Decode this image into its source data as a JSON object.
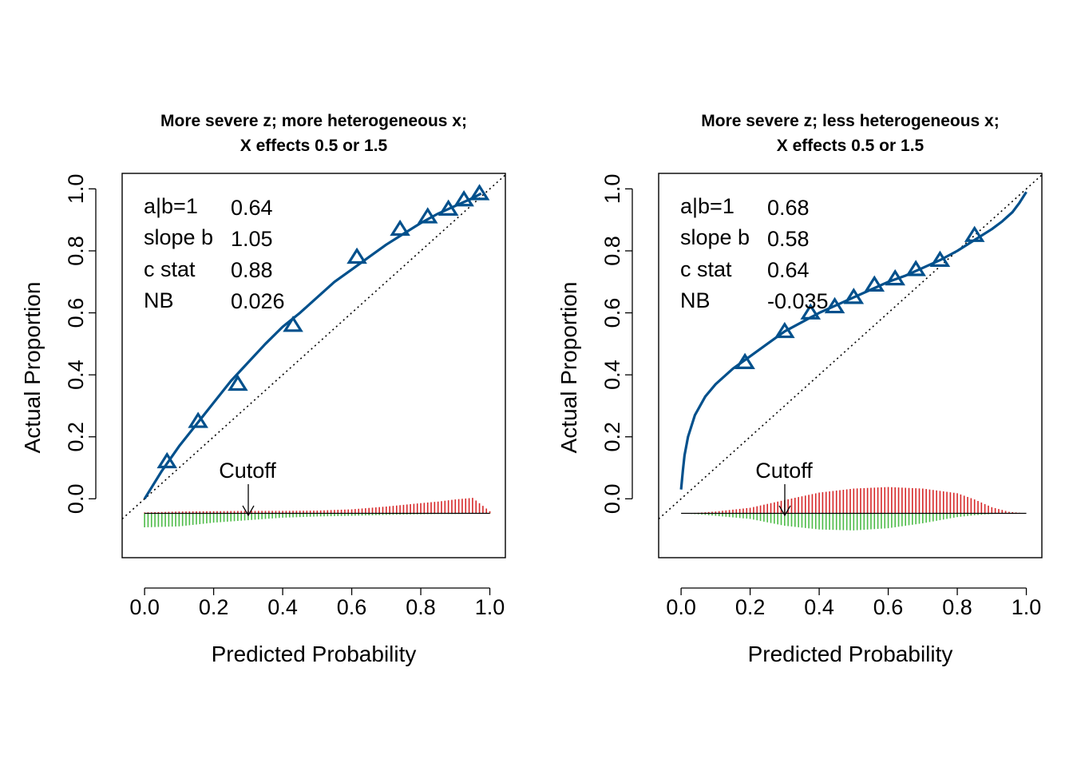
{
  "colors": {
    "curve": "#00508C",
    "event_bars": "#D62728",
    "nonevent_bars": "#4CBB47",
    "diagonal": "#000000",
    "frame": "#000000"
  },
  "chart_data": [
    {
      "type": "line",
      "title_line1": "More severe z; more heterogeneous x;",
      "title_line2": "X effects 0.5 or 1.5",
      "xlabel": "Predicted Probability",
      "ylabel": "Actual Proportion",
      "xlim": [
        -0.065,
        1.045
      ],
      "ylim": [
        -0.19,
        1.05
      ],
      "x_ticks": [
        "0.0",
        "0.2",
        "0.4",
        "0.6",
        "0.8",
        "1.0"
      ],
      "y_ticks": [
        "0.0",
        "0.2",
        "0.4",
        "0.6",
        "0.8",
        "1.0"
      ],
      "stats": {
        "labels": [
          "a|b=1",
          "slope b",
          "c stat",
          "NB"
        ],
        "values": [
          "0.64",
          "1.05",
          "0.88",
          "0.026"
        ]
      },
      "cutoff": {
        "label": "Cutoff",
        "x": 0.3
      },
      "curve": {
        "x": [
          0.0,
          0.05,
          0.1,
          0.15,
          0.2,
          0.25,
          0.3,
          0.35,
          0.4,
          0.45,
          0.5,
          0.55,
          0.6,
          0.65,
          0.7,
          0.75,
          0.8,
          0.85,
          0.9,
          0.95,
          0.975
        ],
        "y": [
          0.0,
          0.09,
          0.17,
          0.24,
          0.31,
          0.38,
          0.44,
          0.5,
          0.555,
          0.6,
          0.65,
          0.7,
          0.74,
          0.78,
          0.82,
          0.855,
          0.89,
          0.92,
          0.945,
          0.97,
          0.985
        ]
      },
      "points": {
        "x": [
          0.065,
          0.155,
          0.27,
          0.43,
          0.615,
          0.74,
          0.82,
          0.88,
          0.925,
          0.97
        ],
        "y": [
          0.12,
          0.25,
          0.37,
          0.56,
          0.78,
          0.87,
          0.91,
          0.935,
          0.965,
          0.985
        ]
      },
      "histogram": {
        "baseline": -0.047,
        "bins": [
          0.0,
          0.1,
          0.2,
          0.3,
          0.4,
          0.5,
          0.6,
          0.7,
          0.8,
          0.85,
          0.9,
          0.95,
          1.0
        ],
        "event_height": [
          0.003,
          0.006,
          0.007,
          0.008,
          0.008,
          0.009,
          0.013,
          0.022,
          0.033,
          0.038,
          0.045,
          0.05,
          0.007
        ],
        "nonevent_depth": [
          0.045,
          0.042,
          0.03,
          0.022,
          0.014,
          0.01,
          0.008,
          0.005,
          0.003,
          0.002,
          0.002,
          0.001,
          0.001
        ]
      }
    },
    {
      "type": "line",
      "title_line1": "More severe z; less heterogeneous x;",
      "title_line2": "X effects 0.5 or 1.5",
      "xlabel": "Predicted Probability",
      "ylabel": "Actual Proportion",
      "xlim": [
        -0.065,
        1.045
      ],
      "ylim": [
        -0.19,
        1.05
      ],
      "x_ticks": [
        "0.0",
        "0.2",
        "0.4",
        "0.6",
        "0.8",
        "1.0"
      ],
      "y_ticks": [
        "0.0",
        "0.2",
        "0.4",
        "0.6",
        "0.8",
        "1.0"
      ],
      "stats": {
        "labels": [
          "a|b=1",
          "slope b",
          "c stat",
          "NB"
        ],
        "values": [
          "0.68",
          "0.58",
          "0.64",
          "-0.035"
        ]
      },
      "cutoff": {
        "label": "Cutoff",
        "x": 0.3
      },
      "curve": {
        "x": [
          0.0,
          0.005,
          0.01,
          0.02,
          0.04,
          0.07,
          0.1,
          0.15,
          0.2,
          0.25,
          0.3,
          0.35,
          0.4,
          0.45,
          0.5,
          0.55,
          0.6,
          0.65,
          0.7,
          0.75,
          0.8,
          0.85,
          0.9,
          0.93,
          0.96,
          0.98,
          1.0
        ],
        "y": [
          0.03,
          0.09,
          0.14,
          0.2,
          0.27,
          0.33,
          0.37,
          0.42,
          0.46,
          0.5,
          0.54,
          0.57,
          0.6,
          0.625,
          0.65,
          0.675,
          0.7,
          0.72,
          0.745,
          0.77,
          0.8,
          0.835,
          0.87,
          0.895,
          0.925,
          0.955,
          0.99
        ]
      },
      "points": {
        "x": [
          0.185,
          0.3,
          0.375,
          0.445,
          0.5,
          0.56,
          0.62,
          0.68,
          0.75,
          0.85
        ],
        "y": [
          0.44,
          0.54,
          0.6,
          0.62,
          0.65,
          0.69,
          0.71,
          0.74,
          0.77,
          0.85
        ]
      },
      "histogram": {
        "baseline": -0.047,
        "bins": [
          0.0,
          0.05,
          0.1,
          0.2,
          0.3,
          0.4,
          0.5,
          0.6,
          0.7,
          0.8,
          0.85,
          0.9,
          0.95,
          1.0
        ],
        "event_height": [
          0.0,
          0.002,
          0.006,
          0.018,
          0.043,
          0.067,
          0.08,
          0.085,
          0.08,
          0.065,
          0.045,
          0.02,
          0.005,
          0.0
        ],
        "nonevent_depth": [
          0.0,
          0.003,
          0.008,
          0.018,
          0.04,
          0.052,
          0.055,
          0.048,
          0.032,
          0.012,
          0.006,
          0.002,
          0.0,
          0.0
        ]
      }
    }
  ]
}
